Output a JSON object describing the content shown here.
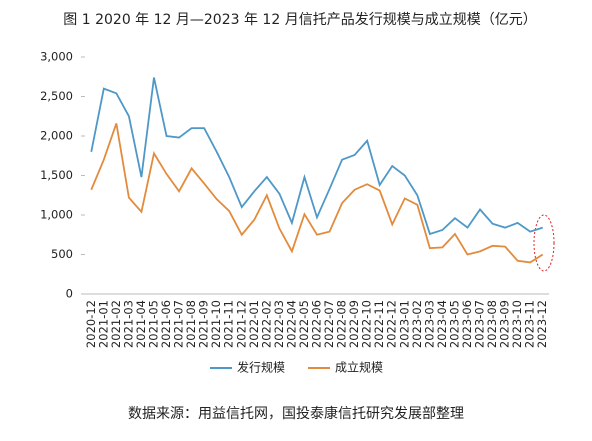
{
  "chart_data": {
    "type": "line",
    "title": "图 1 2020 年 12 月—2023 年 12 月信托产品发行规模与成立规模（亿元）",
    "source": "数据来源：用益信托网，国投泰康信托研究发展部整理",
    "categories": [
      "2020-12",
      "2021-01",
      "2021-02",
      "2021-03",
      "2021-04",
      "2021-05",
      "2021-06",
      "2021-07",
      "2021-08",
      "2021-09",
      "2021-10",
      "2021-11",
      "2021-12",
      "2022-01",
      "2022-02",
      "2022-03",
      "2022-04",
      "2022-05",
      "2022-06",
      "2022-07",
      "2022-08",
      "2022-09",
      "2022-10",
      "2022-11",
      "2022-12",
      "2023-01",
      "2023-02",
      "2023-03",
      "2023-04",
      "2023-05",
      "2023-06",
      "2023-07",
      "2023-08",
      "2023-09",
      "2023-10",
      "2023-11",
      "2023-12"
    ],
    "series": [
      {
        "name": "发行规模",
        "color": "#4e98c8",
        "values": [
          1800,
          2600,
          2540,
          2250,
          1480,
          2740,
          2000,
          1980,
          2100,
          2100,
          1800,
          1480,
          1100,
          1300,
          1480,
          1270,
          900,
          1480,
          970,
          1330,
          1700,
          1760,
          1940,
          1380,
          1620,
          1500,
          1250,
          760,
          810,
          960,
          840,
          1070,
          890,
          840,
          900,
          790,
          840
        ]
      },
      {
        "name": "成立规模",
        "color": "#e38b3d",
        "values": [
          1320,
          1700,
          2160,
          1220,
          1040,
          1780,
          1520,
          1300,
          1590,
          1400,
          1200,
          1050,
          750,
          940,
          1250,
          830,
          540,
          1010,
          750,
          790,
          1150,
          1320,
          1390,
          1310,
          880,
          1210,
          1130,
          580,
          590,
          760,
          500,
          540,
          610,
          600,
          420,
          400,
          500
        ]
      }
    ],
    "ylim": [
      0,
      3000
    ],
    "yticks": [
      0,
      500,
      {
        "value": 1000,
        "label": "1,000"
      },
      {
        "value": 1500,
        "label": "1,500"
      },
      {
        "value": 2000,
        "label": "2,000"
      },
      {
        "value": 2500,
        "label": "2,500"
      },
      {
        "value": 3000,
        "label": "3,000"
      }
    ],
    "legend": "bottom"
  }
}
